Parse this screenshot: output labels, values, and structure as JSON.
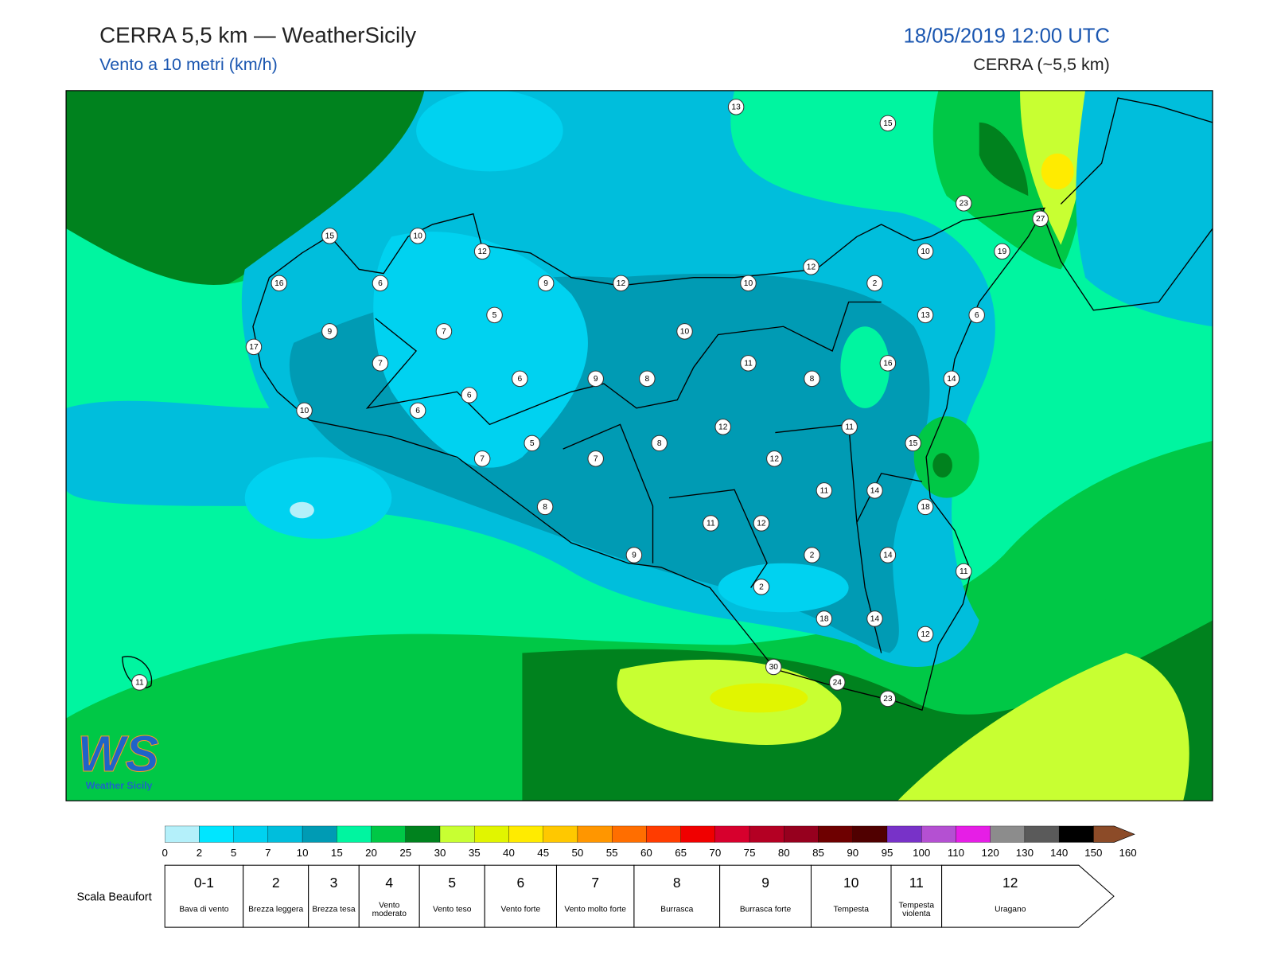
{
  "header": {
    "title": "CERRA 5,5 km — WeatherSicily",
    "subtitle": "Vento a 10 metri (km/h)",
    "datetime": "18/05/2019 12:00 UTC",
    "model": "CERRA (~5,5 km)"
  },
  "map": {
    "stations": [
      13,
      15,
      23,
      27,
      10,
      19,
      15,
      10,
      12,
      12,
      16,
      6,
      9,
      12,
      10,
      2,
      5,
      13,
      6,
      9,
      7,
      10,
      17,
      7,
      11,
      16,
      6,
      9,
      8,
      8,
      14,
      6,
      10,
      6,
      12,
      11,
      5,
      8,
      15,
      7,
      7,
      12,
      11,
      14,
      8,
      18,
      11,
      12,
      2,
      14,
      9,
      11,
      2,
      18,
      14,
      12,
      30,
      24,
      23,
      11
    ]
  },
  "colorbar": {
    "ticks": [
      0,
      2,
      5,
      7,
      10,
      15,
      20,
      25,
      30,
      35,
      40,
      45,
      50,
      55,
      60,
      65,
      70,
      75,
      80,
      85,
      90,
      95,
      100,
      110,
      120,
      130,
      140,
      150,
      160
    ],
    "colors": [
      "#b4f0fa",
      "#00e6ff",
      "#00d2f0",
      "#00bedc",
      "#009bb4",
      "#00f5a0",
      "#00c846",
      "#00821e",
      "#c8ff32",
      "#e1f500",
      "#ffeb00",
      "#ffc800",
      "#ff9600",
      "#ff6e00",
      "#ff3c00",
      "#f00000",
      "#d7002d",
      "#b40023",
      "#96001e",
      "#6e0000",
      "#500000",
      "#7832c8",
      "#b450d2",
      "#e61ee6",
      "#8c8c8c",
      "#5a5a5a",
      "#000000",
      "#8c4b28",
      "#d28c50"
    ]
  },
  "beaufort": {
    "title": "Scala Beaufort",
    "levels": [
      {
        "force": "0-1",
        "label": "Bava di vento"
      },
      {
        "force": "2",
        "label": "Brezza leggera"
      },
      {
        "force": "3",
        "label": "Brezza tesa"
      },
      {
        "force": "4",
        "label": "Vento moderato"
      },
      {
        "force": "5",
        "label": "Vento teso"
      },
      {
        "force": "6",
        "label": "Vento forte"
      },
      {
        "force": "7",
        "label": "Vento molto forte"
      },
      {
        "force": "8",
        "label": "Burrasca"
      },
      {
        "force": "9",
        "label": "Burrasca forte"
      },
      {
        "force": "10",
        "label": "Tempesta"
      },
      {
        "force": "11",
        "label": "Tempesta violenta"
      },
      {
        "force": "12",
        "label": "Uragano"
      }
    ]
  },
  "logo": {
    "mark": "WS",
    "text": "Weather Sicily"
  }
}
